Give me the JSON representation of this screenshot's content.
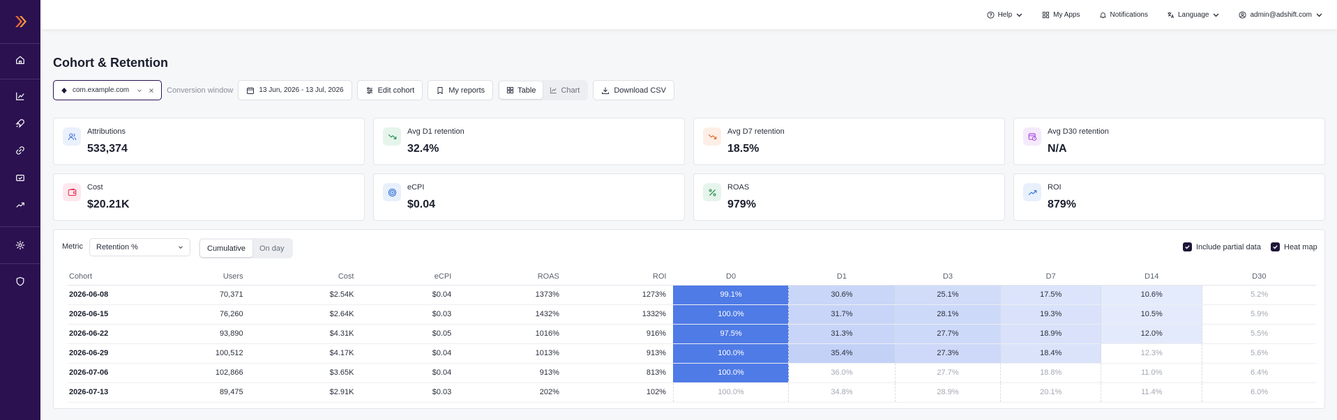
{
  "topbar": {
    "help": "Help",
    "my_apps": "My Apps",
    "notifications": "Notifications",
    "language": "Language",
    "user": "admin@adshift.com"
  },
  "page": {
    "title": "Cohort & Retention"
  },
  "toolbar": {
    "app": "com.example.com",
    "conversion_window_label": "Conversion window",
    "date_range": "13 Jun, 2026 - 13 Jul, 2026",
    "edit_cohort": "Edit cohort",
    "my_reports": "My reports",
    "view_table": "Table",
    "view_chart": "Chart",
    "download_csv": "Download CSV",
    "active_view": "Table"
  },
  "kpis": [
    {
      "label": "Attributions",
      "value": "533,374",
      "icon": "users-icon",
      "color": "#3b6fd8",
      "bg": "#eaf0fc"
    },
    {
      "label": "Avg D1 retention",
      "value": "32.4%",
      "icon": "trending-down-icon",
      "color": "#1f8a4c",
      "bg": "#e6f5ec"
    },
    {
      "label": "Avg D7 retention",
      "value": "18.5%",
      "icon": "trending-down-icon",
      "color": "#e0622a",
      "bg": "#fdeee6"
    },
    {
      "label": "Avg D30 retention",
      "value": "N/A",
      "icon": "calendar-clock-icon",
      "color": "#a23fd8",
      "bg": "#f5eafc"
    },
    {
      "label": "Cost",
      "value": "$20.21K",
      "icon": "wallet-icon",
      "color": "#e0335a",
      "bg": "#fde8ed"
    },
    {
      "label": "eCPI",
      "value": "$0.04",
      "icon": "target-icon",
      "color": "#2f6fd8",
      "bg": "#e8f0fc"
    },
    {
      "label": "ROAS",
      "value": "979%",
      "icon": "percent-icon",
      "color": "#1f8a4c",
      "bg": "#e6f5ec"
    },
    {
      "label": "ROI",
      "value": "879%",
      "icon": "trending-up-icon",
      "color": "#2f6fd8",
      "bg": "#e8f0fc"
    }
  ],
  "table_panel": {
    "metric_label": "Metric",
    "metric_value": "Retention %",
    "mode_cumulative": "Cumulative",
    "mode_on_day": "On day",
    "active_mode": "Cumulative",
    "include_partial": "Include partial data",
    "heat_map": "Heat map",
    "include_partial_checked": true,
    "heat_map_checked": true
  },
  "table": {
    "headers": [
      "Cohort",
      "Users",
      "Cost",
      "eCPI",
      "ROAS",
      "ROI",
      "D0",
      "D1",
      "D3",
      "D7",
      "D14",
      "D30"
    ],
    "rows": [
      {
        "cohort": "2026-06-08",
        "users": "70,371",
        "cost": "$2.54K",
        "ecpi": "$0.04",
        "roas": "1373%",
        "roi": "1273%",
        "days": [
          "99.1%",
          "30.6%",
          "25.1%",
          "17.5%",
          "10.6%",
          "5.2%"
        ],
        "complete": [
          true,
          true,
          true,
          true,
          true,
          false
        ]
      },
      {
        "cohort": "2026-06-15",
        "users": "76,260",
        "cost": "$2.64K",
        "ecpi": "$0.03",
        "roas": "1432%",
        "roi": "1332%",
        "days": [
          "100.0%",
          "31.7%",
          "28.1%",
          "19.3%",
          "10.5%",
          "5.9%"
        ],
        "complete": [
          true,
          true,
          true,
          true,
          true,
          false
        ]
      },
      {
        "cohort": "2026-06-22",
        "users": "93,890",
        "cost": "$4.31K",
        "ecpi": "$0.05",
        "roas": "1016%",
        "roi": "916%",
        "days": [
          "97.5%",
          "31.3%",
          "27.7%",
          "18.9%",
          "12.0%",
          "5.5%"
        ],
        "complete": [
          true,
          true,
          true,
          true,
          true,
          false
        ]
      },
      {
        "cohort": "2026-06-29",
        "users": "100,512",
        "cost": "$4.17K",
        "ecpi": "$0.04",
        "roas": "1013%",
        "roi": "913%",
        "days": [
          "100.0%",
          "35.4%",
          "27.3%",
          "18.4%",
          "12.3%",
          "5.6%"
        ],
        "complete": [
          true,
          true,
          true,
          true,
          false,
          false
        ]
      },
      {
        "cohort": "2026-07-06",
        "users": "102,866",
        "cost": "$3.65K",
        "ecpi": "$0.04",
        "roas": "913%",
        "roi": "813%",
        "days": [
          "100.0%",
          "36.0%",
          "27.7%",
          "18.8%",
          "11.0%",
          "6.4%"
        ],
        "complete": [
          true,
          false,
          false,
          false,
          false,
          false
        ]
      },
      {
        "cohort": "2026-07-13",
        "users": "89,475",
        "cost": "$2.91K",
        "ecpi": "$0.03",
        "roas": "202%",
        "roi": "102%",
        "days": [
          "100.0%",
          "34.8%",
          "28.9%",
          "20.1%",
          "11.4%",
          "6.0%"
        ],
        "complete": [
          false,
          false,
          false,
          false,
          false,
          false
        ]
      }
    ]
  },
  "colors": {
    "sidebar": "#2b1150",
    "accent": "#4f7be6",
    "heat_light": "#dde6fb"
  }
}
